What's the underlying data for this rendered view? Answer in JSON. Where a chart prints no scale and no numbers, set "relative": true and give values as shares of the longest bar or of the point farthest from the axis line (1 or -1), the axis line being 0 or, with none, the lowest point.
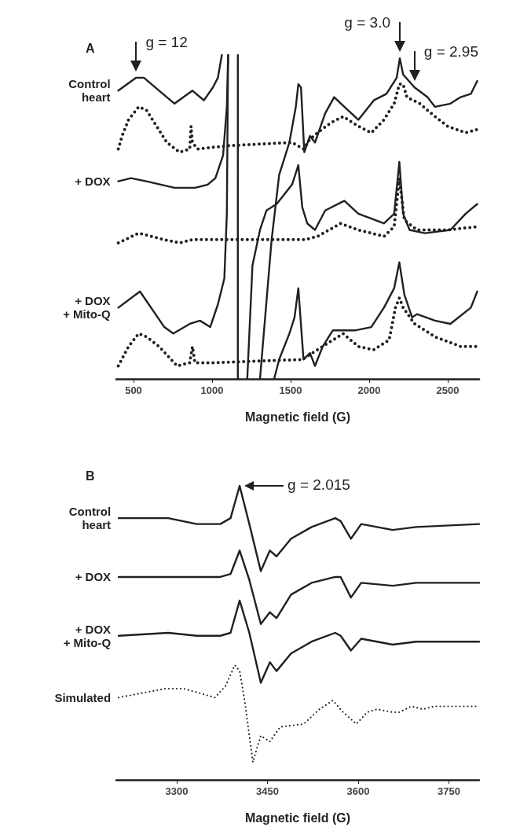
{
  "chart_data": [
    {
      "type": "line",
      "title": "A",
      "xlabel": "Magnetic field (G)",
      "relative": true,
      "xlim": [
        390,
        2700
      ],
      "xticks": [
        500,
        1000,
        1500,
        2000,
        2500
      ],
      "grid": false,
      "marker": "none",
      "annotations": [
        {
          "text": "g = 12",
          "x": 517,
          "y": 0.93
        },
        {
          "text": "g = 3.0",
          "x": 2195,
          "y": 0.99
        },
        {
          "text": "g = 2.95",
          "x": 2289,
          "y": 0.9
        }
      ],
      "series": [
        {
          "name": "Control\nheart",
          "color": "#231f20",
          "line_style": "solid",
          "x": [
            403,
            517,
            566,
            663,
            761,
            875,
            948,
            1005,
            1037,
            1062,
            1110,
            1164,
            1164,
            1230,
            1305,
            1379,
            1427,
            1492,
            1533,
            1549,
            1566,
            1587,
            1623,
            1655,
            1720,
            1777,
            1842,
            1931,
            2029,
            2110,
            2175,
            2195,
            2216,
            2289,
            2371,
            2419,
            2517,
            2582,
            2647,
            2688
          ],
          "values": [
            0.89,
            0.93,
            0.93,
            0.89,
            0.85,
            0.89,
            0.86,
            0.9,
            0.93,
            1,
            null,
            1,
            0,
            null,
            0,
            0.43,
            0.63,
            0.73,
            0.84,
            0.91,
            0.9,
            0.7,
            0.75,
            0.73,
            0.82,
            0.87,
            0.84,
            0.8,
            0.86,
            0.88,
            0.93,
            0.99,
            0.94,
            0.9,
            0.87,
            0.84,
            0.85,
            0.87,
            0.88,
            0.92
          ]
        },
        {
          "color": "#231f20",
          "line_style": "dotted",
          "x": [
            403,
            427,
            468,
            533,
            582,
            647,
            712,
            793,
            858,
            866,
            875,
            907,
            1102,
            1509,
            1582,
            1623,
            1671,
            1753,
            1834,
            1931,
            2013,
            2094,
            2159,
            2192,
            2216,
            2240,
            2322,
            2419,
            2500,
            2614,
            2688
          ],
          "values": [
            0.71,
            0.75,
            0.8,
            0.84,
            0.83,
            0.78,
            0.73,
            0.7,
            0.71,
            0.78,
            0.73,
            0.71,
            0.72,
            0.73,
            0.71,
            0.74,
            0.76,
            0.79,
            0.81,
            0.78,
            0.76,
            0.8,
            0.85,
            0.91,
            0.91,
            0.87,
            0.85,
            0.81,
            0.78,
            0.76,
            0.77
          ]
        },
        {
          "name": "+ DOX",
          "color": "#231f20",
          "line_style": "solid",
          "x": [
            403,
            484,
            582,
            761,
            891,
            972,
            1021,
            1070,
            1094,
            1102,
            1160,
            1224,
            1257,
            1305,
            1346,
            1411,
            1509,
            1549,
            1574,
            1606,
            1655,
            1720,
            1842,
            1931,
            2094,
            2159,
            2192,
            2216,
            2257,
            2354,
            2517,
            2614,
            2688
          ],
          "values": [
            0.61,
            0.62,
            0.61,
            0.59,
            0.59,
            0.6,
            0.62,
            0.69,
            0.84,
            1,
            null,
            0,
            0.35,
            0.46,
            0.52,
            0.54,
            0.6,
            0.66,
            0.53,
            0.48,
            0.46,
            0.52,
            0.55,
            0.51,
            0.48,
            0.51,
            0.67,
            0.51,
            0.46,
            0.45,
            0.46,
            0.51,
            0.54
          ]
        },
        {
          "color": "#231f20",
          "line_style": "dotted",
          "x": [
            403,
            533,
            696,
            793,
            875,
            1184,
            1590,
            1671,
            1818,
            1931,
            2094,
            2159,
            2192,
            2224,
            2305,
            2500,
            2688
          ],
          "values": [
            0.42,
            0.45,
            0.43,
            0.42,
            0.43,
            0.43,
            0.43,
            0.44,
            0.48,
            0.46,
            0.44,
            0.47,
            0.62,
            0.49,
            0.46,
            0.46,
            0.47
          ]
        },
        {
          "name": "+ DOX\n+ Mito-Q",
          "color": "#231f20",
          "line_style": "solid",
          "x": [
            403,
            541,
            696,
            753,
            858,
            923,
            988,
            1037,
            1078,
            1094,
            1102,
            1250,
            1395,
            1427,
            1492,
            1525,
            1549,
            1582,
            1623,
            1655,
            1704,
            1769,
            1915,
            2013,
            2094,
            2159,
            2192,
            2224,
            2273,
            2305,
            2419,
            2517,
            2647,
            2688
          ],
          "values": [
            0.22,
            0.27,
            0.16,
            0.14,
            0.17,
            0.18,
            0.16,
            0.23,
            0.31,
            0.51,
            1,
            null,
            0,
            0.06,
            0.14,
            0.19,
            0.28,
            0.06,
            0.08,
            0.04,
            0.1,
            0.15,
            0.15,
            0.16,
            0.22,
            0.28,
            0.36,
            0.26,
            0.19,
            0.2,
            0.18,
            0.17,
            0.22,
            0.27
          ]
        },
        {
          "color": "#231f20",
          "line_style": "dotted",
          "x": [
            403,
            468,
            533,
            582,
            663,
            777,
            858,
            875,
            891,
            1021,
            1574,
            1671,
            1769,
            1834,
            1931,
            2029,
            2127,
            2167,
            2192,
            2216,
            2289,
            2419,
            2582,
            2688
          ],
          "values": [
            0.04,
            0.1,
            0.14,
            0.13,
            0.1,
            0.04,
            0.05,
            0.1,
            0.05,
            0.05,
            0.06,
            0.09,
            0.12,
            0.14,
            0.1,
            0.09,
            0.12,
            0.22,
            0.25,
            0.22,
            0.17,
            0.13,
            0.1,
            0.1
          ]
        }
      ]
    },
    {
      "type": "line",
      "title": "B",
      "xlabel": "Magnetic field (G)",
      "relative": true,
      "xlim": [
        3200,
        3800
      ],
      "xticks": [
        3300,
        3450,
        3600,
        3750
      ],
      "grid": false,
      "marker": "none",
      "annotations": [
        "g = 2.015"
      ],
      "series": [
        {
          "name": "Control\nheart",
          "color": "#231f20",
          "line_style": "solid",
          "x": [
            3204,
            3286,
            3333,
            3372,
            3389,
            3404,
            3420,
            3439,
            3454,
            3465,
            3489,
            3523,
            3562,
            3571,
            3588,
            3605,
            3657,
            3696,
            3800
          ],
          "values": [
            0.89,
            0.89,
            0.87,
            0.87,
            0.89,
            1,
            0.87,
            0.71,
            0.78,
            0.76,
            0.82,
            0.86,
            0.89,
            0.88,
            0.82,
            0.87,
            0.85,
            0.86,
            0.87
          ]
        },
        {
          "name": "+ DOX",
          "color": "#231f20",
          "line_style": "solid",
          "x": [
            3204,
            3286,
            3333,
            3372,
            3389,
            3404,
            3420,
            3439,
            3454,
            3465,
            3489,
            3523,
            3562,
            3571,
            3588,
            3605,
            3657,
            3696,
            3800
          ],
          "values": [
            0.69,
            0.69,
            0.69,
            0.69,
            0.7,
            0.78,
            0.68,
            0.53,
            0.57,
            0.55,
            0.63,
            0.67,
            0.69,
            0.69,
            0.62,
            0.67,
            0.66,
            0.67,
            0.67
          ]
        },
        {
          "name": "+ DOX\n+ Mito-Q",
          "color": "#231f20",
          "line_style": "solid",
          "x": [
            3204,
            3286,
            3333,
            3372,
            3389,
            3404,
            3420,
            3439,
            3454,
            3465,
            3489,
            3523,
            3562,
            3571,
            3588,
            3605,
            3657,
            3696,
            3800
          ],
          "values": [
            0.49,
            0.5,
            0.49,
            0.49,
            0.5,
            0.61,
            0.5,
            0.33,
            0.4,
            0.37,
            0.43,
            0.47,
            0.5,
            0.49,
            0.44,
            0.48,
            0.46,
            0.47,
            0.47
          ]
        },
        {
          "name": "Simulated",
          "color": "#231f20",
          "line_style": "dotted",
          "x": [
            3204,
            3281,
            3312,
            3363,
            3381,
            3396,
            3404,
            3413,
            3420,
            3426,
            3433,
            3439,
            3454,
            3471,
            3510,
            3536,
            3558,
            3575,
            3597,
            3615,
            3631,
            3657,
            3668,
            3688,
            3707,
            3726,
            3799
          ],
          "values": [
            0.28,
            0.31,
            0.31,
            0.28,
            0.32,
            0.39,
            0.37,
            0.26,
            0.15,
            0.06,
            0.11,
            0.15,
            0.13,
            0.18,
            0.19,
            0.24,
            0.27,
            0.23,
            0.19,
            0.23,
            0.24,
            0.23,
            0.23,
            0.25,
            0.24,
            0.25,
            0.25
          ]
        }
      ]
    }
  ]
}
